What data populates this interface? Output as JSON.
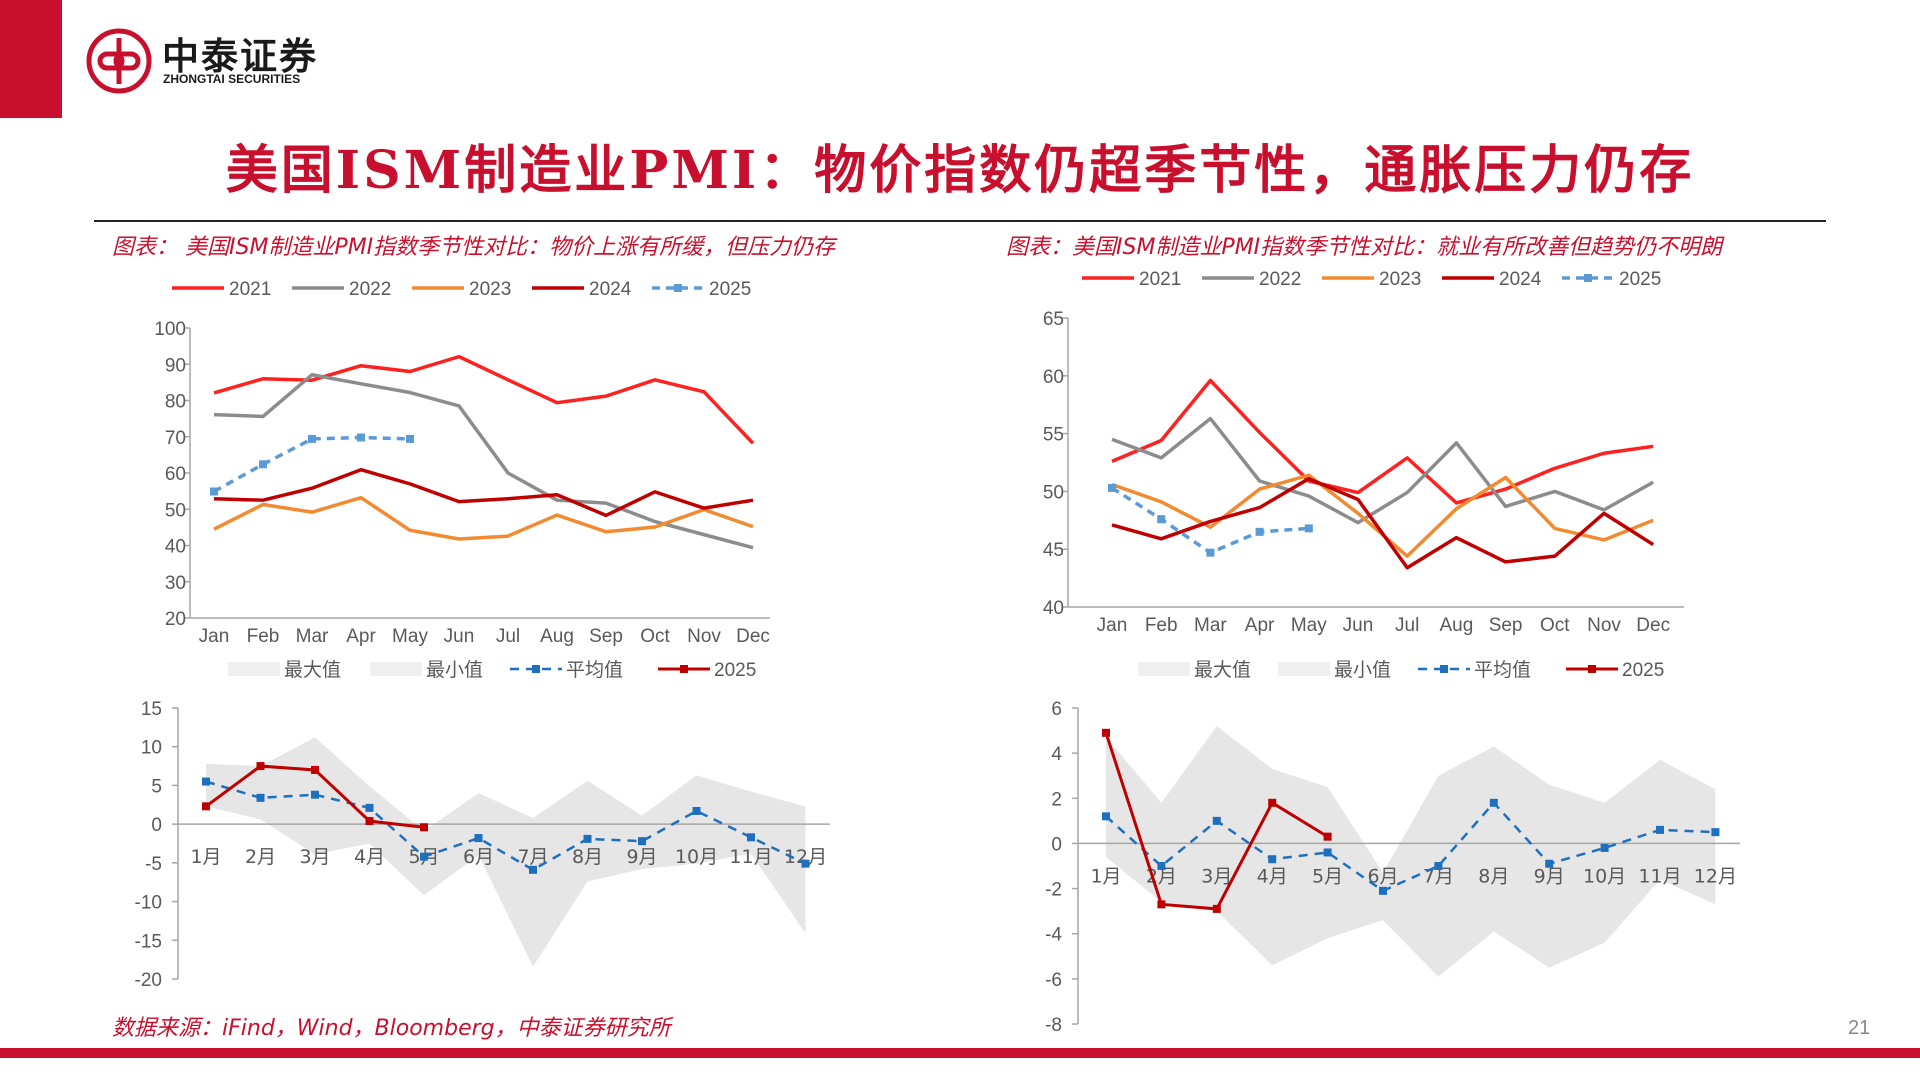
{
  "brand": {
    "name_cn": "中泰证券",
    "name_en": "ZHONGTAI SECURITIES"
  },
  "title": "美国ISM制造业PMI：物价指数仍超季节性，通胀压力仍存",
  "left_panel_title": "图表： 美国ISM制造业PMI指数季节性对比：物价上涨有所缓，但压力仍存",
  "right_panel_title": "图表：美国ISM制造业PMI指数季节性对比：就业有所改善但趋势仍不明朗",
  "source": "数据来源：iFind，Wind，Bloomberg，中泰证券研究所",
  "page_number": "21",
  "colors": {
    "accent": "#c8102e",
    "y2021": "#ff2020",
    "y2022": "#8c8c8c",
    "y2023": "#f28a30",
    "y2024": "#c00000",
    "y2025": "#5b9bd5",
    "avg": "#1f6fbf",
    "band": "#e6e6e6"
  },
  "chart_data": [
    {
      "type": "line",
      "title": "",
      "categories": [
        "Jan",
        "Feb",
        "Mar",
        "Apr",
        "May",
        "Jun",
        "Jul",
        "Aug",
        "Sep",
        "Oct",
        "Nov",
        "Dec"
      ],
      "ylim": [
        20,
        100
      ],
      "yticks": [
        20,
        30,
        40,
        50,
        60,
        70,
        80,
        90,
        100
      ],
      "legend": "top",
      "series": [
        {
          "name": "2021",
          "values": [
            82.1,
            86.0,
            85.6,
            89.6,
            88.0,
            92.1,
            85.7,
            79.4,
            81.2,
            85.7,
            82.4,
            68.2
          ]
        },
        {
          "name": "2022",
          "values": [
            76.1,
            75.6,
            87.1,
            84.6,
            82.2,
            78.5,
            60.0,
            52.5,
            51.7,
            46.6,
            43.0,
            39.4
          ]
        },
        {
          "name": "2023",
          "values": [
            44.5,
            51.3,
            49.2,
            53.2,
            44.2,
            41.8,
            42.6,
            48.4,
            43.8,
            45.1,
            49.9,
            45.2
          ]
        },
        {
          "name": "2024",
          "values": [
            52.9,
            52.5,
            55.8,
            60.9,
            57.0,
            52.1,
            52.9,
            54.0,
            48.3,
            54.8,
            50.3,
            52.5
          ]
        },
        {
          "name": "2025",
          "values": [
            54.9,
            62.4,
            69.4,
            69.8,
            69.4,
            null,
            null,
            null,
            null,
            null,
            null,
            null
          ]
        }
      ]
    },
    {
      "type": "line",
      "title": "",
      "categories": [
        "Jan",
        "Feb",
        "Mar",
        "Apr",
        "May",
        "Jun",
        "Jul",
        "Aug",
        "Sep",
        "Oct",
        "Nov",
        "Dec"
      ],
      "ylim": [
        40,
        65
      ],
      "yticks": [
        40,
        45,
        50,
        55,
        60,
        65
      ],
      "legend": "top",
      "series": [
        {
          "name": "2021",
          "values": [
            52.6,
            54.4,
            59.6,
            55.1,
            50.9,
            49.9,
            52.9,
            49.0,
            50.2,
            52.0,
            53.3,
            53.9
          ]
        },
        {
          "name": "2022",
          "values": [
            54.5,
            52.9,
            56.3,
            50.9,
            49.6,
            47.3,
            49.9,
            54.2,
            48.7,
            50.0,
            48.4,
            50.8
          ]
        },
        {
          "name": "2023",
          "values": [
            50.6,
            49.1,
            46.9,
            50.2,
            51.4,
            48.1,
            44.4,
            48.5,
            51.2,
            46.8,
            45.8,
            47.5
          ]
        },
        {
          "name": "2024",
          "values": [
            47.1,
            45.9,
            47.4,
            48.6,
            51.1,
            49.3,
            43.4,
            46.0,
            43.9,
            44.4,
            48.1,
            45.4
          ]
        },
        {
          "name": "2025",
          "values": [
            50.3,
            47.6,
            44.7,
            46.5,
            46.8,
            null,
            null,
            null,
            null,
            null,
            null,
            null
          ]
        }
      ]
    },
    {
      "type": "area",
      "title": "",
      "categories": [
        "1月",
        "2月",
        "3月",
        "4月",
        "5月",
        "6月",
        "7月",
        "8月",
        "9月",
        "10月",
        "11月",
        "12月"
      ],
      "ylim": [
        -20,
        15
      ],
      "yticks": [
        -20,
        -15,
        -10,
        -5,
        0,
        5,
        10,
        15
      ],
      "legend": "top",
      "series": [
        {
          "name": "最大值",
          "values": [
            7.8,
            7.5,
            11.2,
            4.9,
            -0.9,
            4.0,
            0.8,
            5.6,
            1.1,
            6.3,
            4.2,
            2.3
          ]
        },
        {
          "name": "最小值",
          "values": [
            2.3,
            0.6,
            -3.9,
            -2.5,
            -9.2,
            -4.0,
            -18.4,
            -7.4,
            -5.8,
            -5.1,
            -3.8,
            -14.1
          ]
        },
        {
          "name": "平均值",
          "values": [
            5.5,
            3.4,
            3.8,
            2.1,
            -4.2,
            -1.8,
            -5.9,
            -1.9,
            -2.2,
            1.7,
            -1.7,
            -5.1
          ]
        },
        {
          "name": "2025",
          "values": [
            2.3,
            7.5,
            7.0,
            0.4,
            -0.4,
            null,
            null,
            null,
            null,
            null,
            null,
            null
          ]
        }
      ]
    },
    {
      "type": "area",
      "title": "",
      "categories": [
        "1月",
        "2月",
        "3月",
        "4月",
        "5月",
        "6月",
        "7月",
        "8月",
        "9月",
        "10月",
        "11月",
        "12月"
      ],
      "ylim": [
        -8,
        6
      ],
      "yticks": [
        -8,
        -6,
        -4,
        -2,
        0,
        2,
        4,
        6
      ],
      "legend": "top",
      "series": [
        {
          "name": "最大值",
          "values": [
            4.7,
            1.8,
            5.2,
            3.3,
            2.5,
            -1.3,
            3.0,
            4.3,
            2.6,
            1.8,
            3.7,
            2.4
          ]
        },
        {
          "name": "最小值",
          "values": [
            -0.6,
            -2.6,
            -3.0,
            -5.4,
            -4.2,
            -3.4,
            -5.9,
            -3.9,
            -5.5,
            -4.4,
            -1.6,
            -2.7
          ]
        },
        {
          "name": "平均值",
          "values": [
            1.2,
            -1.0,
            1.0,
            -0.7,
            -0.4,
            -2.1,
            -1.0,
            1.8,
            -0.9,
            -0.2,
            0.6,
            0.5
          ]
        },
        {
          "name": "2025",
          "values": [
            4.9,
            -2.7,
            -2.9,
            1.8,
            0.3,
            null,
            null,
            null,
            null,
            null,
            null,
            null
          ]
        }
      ]
    }
  ]
}
